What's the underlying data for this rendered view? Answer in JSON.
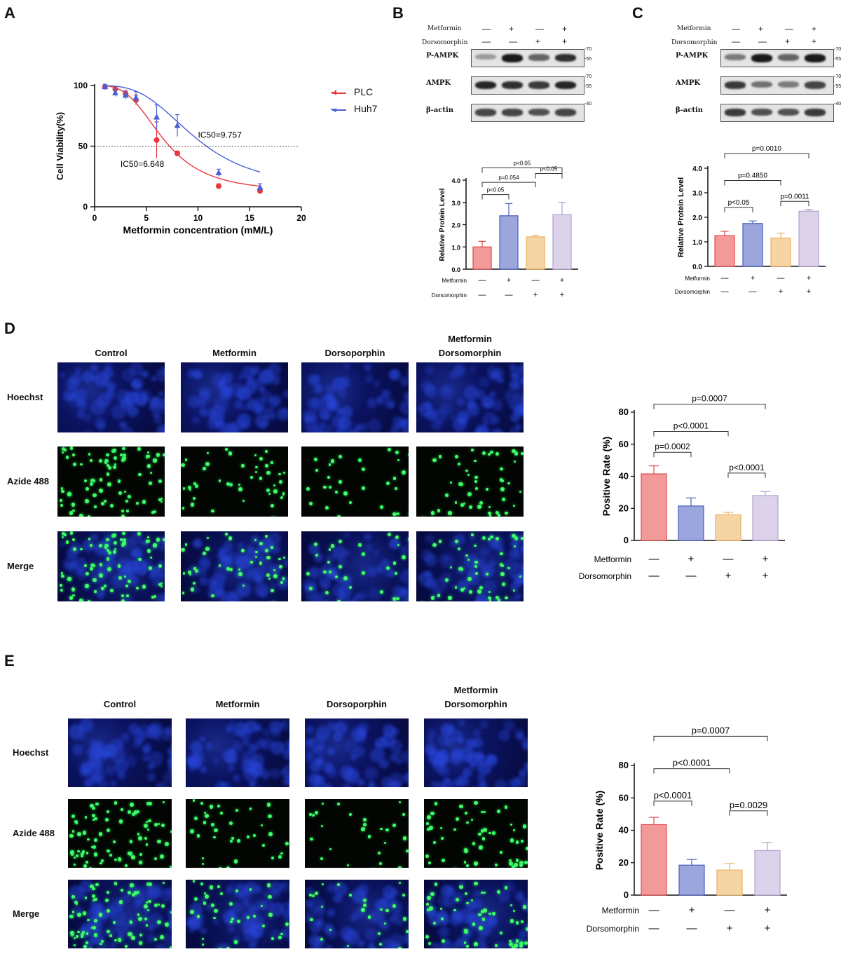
{
  "panels": {
    "A": "A",
    "B": "B",
    "C": "C",
    "D": "D",
    "E": "E"
  },
  "chart_data": [
    {
      "panel": "A",
      "type": "scatter",
      "xlabel": "Metformin concentration (mM/L)",
      "ylabel": "Cell Viability(%)",
      "xlim": [
        0,
        20
      ],
      "ylim": [
        0,
        100
      ],
      "xticks": [
        "0",
        "5",
        "10",
        "15",
        "20"
      ],
      "yticks": [
        "0",
        "50",
        "100"
      ],
      "reference_line": 50,
      "legend_placement": "top-right",
      "series": [
        {
          "name": "PLC",
          "color": "#e8393d",
          "marker": "circle",
          "x": [
            1,
            2,
            3,
            4,
            6,
            8,
            12,
            16
          ],
          "y": [
            99,
            97,
            93,
            88,
            55,
            44,
            17,
            13
          ],
          "err": [
            1,
            2,
            3,
            4,
            15,
            2,
            2,
            1
          ],
          "ic50_label": "IC50=6.648"
        },
        {
          "name": "Huh7",
          "color": "#4a5fd8",
          "marker": "triangle",
          "x": [
            1,
            2,
            3,
            4,
            6,
            8,
            12,
            16
          ],
          "y": [
            99,
            94,
            92,
            90,
            74,
            67,
            28,
            16
          ],
          "err": [
            2,
            3,
            3,
            5,
            10,
            9,
            3,
            3
          ],
          "ic50_label": "IC50=9.757"
        }
      ]
    },
    {
      "panel": "B",
      "type": "bar",
      "ylabel": "Relative Protein Level",
      "ylim": [
        0,
        4
      ],
      "yticks": [
        "0.0",
        "1.0",
        "2.0",
        "3.0",
        "4.0"
      ],
      "values": [
        1.0,
        2.4,
        1.45,
        2.45
      ],
      "errors": [
        0.25,
        0.55,
        0.07,
        0.55
      ],
      "colors": [
        "#f29a9a",
        "#9aa6dc",
        "#f6d5a4",
        "#dcd3ea"
      ],
      "strokes": [
        "#e04848",
        "#4a5ec0",
        "#e8b060",
        "#b0a0d0"
      ],
      "metformin": [
        "—",
        "+",
        "—",
        "+"
      ],
      "dorsomorphin": [
        "—",
        "—",
        "+",
        "+"
      ],
      "brackets": [
        {
          "a": 0,
          "b": 3,
          "y": 4.55,
          "text": "p<0.05"
        },
        {
          "a": 0,
          "b": 2,
          "y": 3.9,
          "text": "p=0.054"
        },
        {
          "a": 2,
          "b": 3,
          "y": 4.3,
          "text": "p<0.05"
        },
        {
          "a": 0,
          "b": 1,
          "y": 3.35,
          "text": "p<0.05"
        }
      ]
    },
    {
      "panel": "C",
      "type": "bar",
      "ylabel": "Relative Protein Level",
      "ylim": [
        0,
        4
      ],
      "yticks": [
        "0.0",
        "1.0",
        "2.0",
        "3.0",
        "4.0"
      ],
      "values": [
        1.25,
        1.75,
        1.15,
        2.25
      ],
      "errors": [
        0.18,
        0.1,
        0.2,
        0.07
      ],
      "colors": [
        "#f29a9a",
        "#9aa6dc",
        "#f6d5a4",
        "#dcd3ea"
      ],
      "strokes": [
        "#e04848",
        "#4a5ec0",
        "#e8b060",
        "#b0a0d0"
      ],
      "metformin": [
        "—",
        "+",
        "—",
        "+"
      ],
      "dorsomorphin": [
        "—",
        "—",
        "+",
        "+"
      ],
      "brackets": [
        {
          "a": 0,
          "b": 3,
          "y": 4.6,
          "text": "p=0.0010"
        },
        {
          "a": 0,
          "b": 2,
          "y": 3.5,
          "text": "p=0.4850"
        },
        {
          "a": 2,
          "b": 3,
          "y": 2.65,
          "text": "p=0.0011"
        },
        {
          "a": 0,
          "b": 1,
          "y": 2.4,
          "text": "p<0.05"
        }
      ]
    },
    {
      "panel": "D",
      "type": "bar",
      "ylabel": "Positive Rate (%)",
      "ylim": [
        0,
        80
      ],
      "yticks": [
        "0",
        "20",
        "40",
        "60",
        "80"
      ],
      "values": [
        41.5,
        21.5,
        16,
        28
      ],
      "errors": [
        5,
        5,
        1.5,
        2.5
      ],
      "colors": [
        "#f29a9a",
        "#9aa6dc",
        "#f6d5a4",
        "#dcd3ea"
      ],
      "strokes": [
        "#e04848",
        "#4a5ec0",
        "#e8b060",
        "#b0a0d0"
      ],
      "metformin": [
        "—",
        "+",
        "—",
        "+"
      ],
      "dorsomorphin": [
        "—",
        "—",
        "+",
        "+"
      ],
      "brackets": [
        {
          "a": 0,
          "b": 3,
          "y": 85,
          "text": "p=0.0007"
        },
        {
          "a": 0,
          "b": 2,
          "y": 68,
          "text": "p<0.0001"
        },
        {
          "a": 0,
          "b": 1,
          "y": 55,
          "text": "p=0.0002"
        },
        {
          "a": 2,
          "b": 3,
          "y": 42,
          "text": "p<0.0001"
        }
      ]
    },
    {
      "panel": "E",
      "type": "bar",
      "ylabel": "Positive Rate (%)",
      "ylim": [
        0,
        80
      ],
      "yticks": [
        "0",
        "20",
        "40",
        "60",
        "80"
      ],
      "values": [
        43.5,
        18.5,
        15.5,
        27.5
      ],
      "errors": [
        4.5,
        3.5,
        4,
        5
      ],
      "colors": [
        "#f29a9a",
        "#9aa6dc",
        "#f6d5a4",
        "#dcd3ea"
      ],
      "strokes": [
        "#e04848",
        "#4a5ec0",
        "#e8b060",
        "#b0a0d0"
      ],
      "metformin": [
        "—",
        "+",
        "—",
        "+"
      ],
      "dorsomorphin": [
        "—",
        "—",
        "+",
        "+"
      ],
      "brackets": [
        {
          "a": 0,
          "b": 3,
          "y": 98,
          "text": "p=0.0007"
        },
        {
          "a": 0,
          "b": 2,
          "y": 78,
          "text": "p<0.0001"
        },
        {
          "a": 0,
          "b": 1,
          "y": 58,
          "text": "p<0.0001"
        },
        {
          "a": 2,
          "b": 3,
          "y": 52,
          "text": "p=0.0029"
        }
      ]
    }
  ],
  "blots": {
    "B": {
      "metformin_label": "Metformin",
      "dorsomorphin_label": "Dorsomorphin",
      "metformin": [
        "—",
        "+",
        "—",
        "+"
      ],
      "dorsomorphin": [
        "—",
        "—",
        "+",
        "+"
      ],
      "bands": [
        {
          "name": "P-AMPK",
          "markers": [
            "-70",
            "-55"
          ],
          "intensity": [
            0.35,
            0.95,
            0.6,
            0.85
          ]
        },
        {
          "name": "AMPK",
          "markers": [
            "-70",
            "-55"
          ],
          "intensity": [
            0.9,
            0.85,
            0.8,
            0.9
          ]
        },
        {
          "name": "β-actin",
          "markers": [
            "-40"
          ],
          "intensity": [
            0.75,
            0.75,
            0.7,
            0.75
          ]
        }
      ]
    },
    "C": {
      "metformin_label": "Metformin",
      "dorsomorphin_label": "Dorsomorphin",
      "metformin": [
        "—",
        "+",
        "—",
        "+"
      ],
      "dorsomorphin": [
        "—",
        "—",
        "+",
        "+"
      ],
      "bands": [
        {
          "name": "P-AMPK",
          "markers": [
            "-70",
            "-55"
          ],
          "intensity": [
            0.5,
            0.95,
            0.6,
            0.95
          ]
        },
        {
          "name": "AMPK",
          "markers": [
            "-70",
            "-55"
          ],
          "intensity": [
            0.8,
            0.55,
            0.5,
            0.75
          ]
        },
        {
          "name": "β-actin",
          "markers": [
            "-40"
          ],
          "intensity": [
            0.8,
            0.7,
            0.7,
            0.8
          ]
        }
      ]
    }
  },
  "bar_axis_labels": {
    "metformin": "Metformin",
    "dorsomorphin": "Dorsomorphin"
  },
  "micrographs": {
    "D": {
      "columns": [
        "Control",
        "Metformin",
        "Dorsoporphin",
        "Metformin\nDorsomorphin"
      ],
      "rows": [
        "Hoechst",
        "Azide 488",
        "Merge"
      ],
      "green_density": [
        0.9,
        0.5,
        0.35,
        0.55
      ]
    },
    "E": {
      "columns": [
        "Control",
        "Metformin",
        "Dorsoporphin",
        "Metformin\nDorsomorphin"
      ],
      "rows": [
        "Hoechst",
        "Azide 488",
        "Merge"
      ],
      "green_density": [
        0.9,
        0.4,
        0.3,
        0.6
      ]
    }
  }
}
